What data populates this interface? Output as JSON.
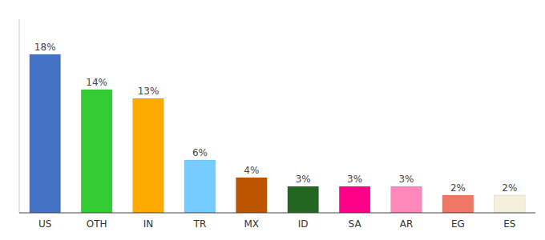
{
  "chart_data": {
    "type": "bar",
    "categories": [
      "US",
      "OTH",
      "IN",
      "TR",
      "MX",
      "ID",
      "SA",
      "AR",
      "EG",
      "ES"
    ],
    "values": [
      18,
      14,
      13,
      6,
      4,
      3,
      3,
      3,
      2,
      2
    ],
    "value_labels": [
      "18%",
      "14%",
      "13%",
      "6%",
      "4%",
      "3%",
      "3%",
      "3%",
      "2%",
      "2%"
    ],
    "colors": [
      "#4472c4",
      "#33cc33",
      "#ffaa00",
      "#77ccff",
      "#bb5500",
      "#226622",
      "#ff0088",
      "#ff88bb",
      "#ee7766",
      "#f5f0dc"
    ],
    "ylim": [
      0,
      22
    ],
    "data_labels": true,
    "tick_labels": "x"
  }
}
